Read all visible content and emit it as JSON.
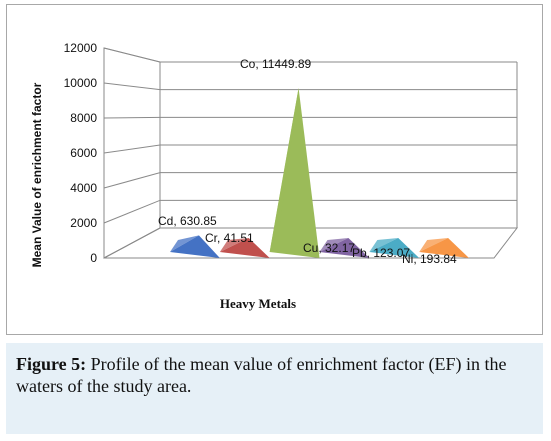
{
  "chart_data": {
    "type": "area",
    "subtype": "3d-peak",
    "categories": [
      "Cd",
      "Cr",
      "Co",
      "Cu",
      "Pb",
      "Ni"
    ],
    "values": [
      630.85,
      41.51,
      11449.89,
      32.17,
      123.07,
      193.84
    ],
    "data_labels": [
      "Cd, 630.85",
      "Cr, 41.51",
      "Co, 11449.89",
      "Cu, 32.17",
      "Pb, 123.07",
      "Ni, 193.84"
    ],
    "colors": [
      "#4472c4",
      "#c0504d",
      "#9bbb59",
      "#8064a2",
      "#4bacc6",
      "#f79646"
    ],
    "xlabel": "Heavy Metals",
    "ylabel": "Mean Value of enrichment factor",
    "yticks": [
      "0",
      "2000",
      "4000",
      "6000",
      "8000",
      "10000",
      "12000"
    ],
    "ylim": [
      0,
      12000
    ],
    "grid": true,
    "legend": "none"
  },
  "caption": {
    "label": "Figure 5:",
    "text": " Profile of the mean value of enrichment factor (EF) in the waters of the study area."
  }
}
